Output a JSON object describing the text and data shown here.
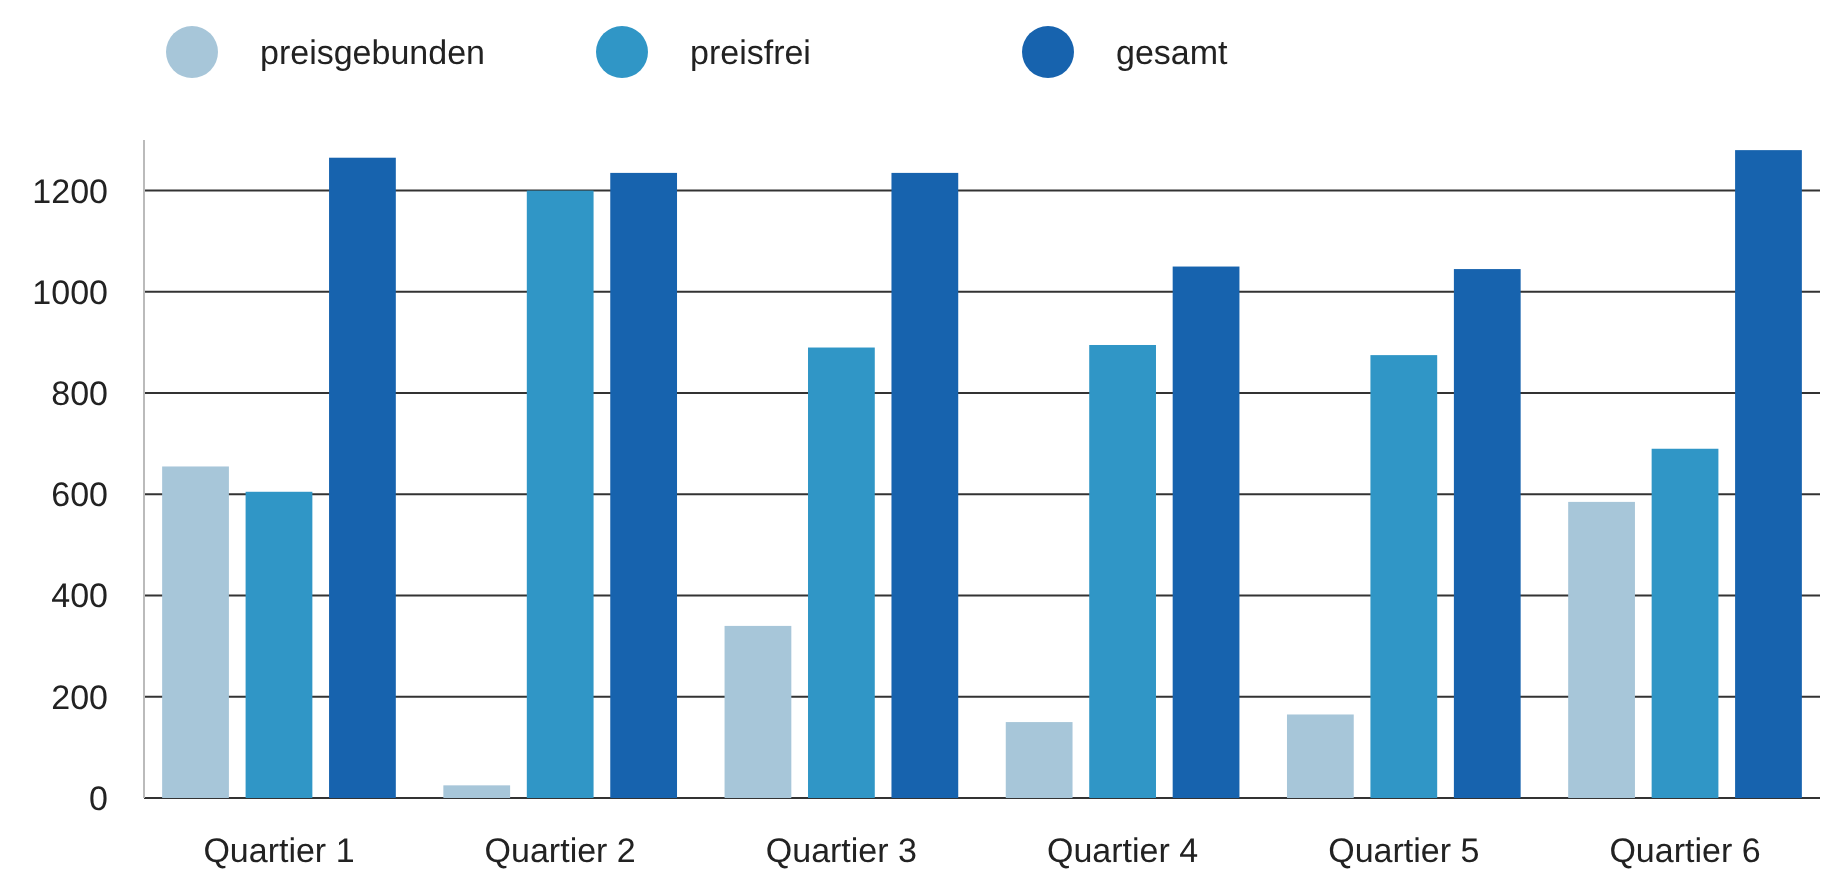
{
  "chart_data": {
    "type": "bar",
    "categories": [
      "Quartier 1",
      "Quartier 2",
      "Quartier 3",
      "Quartier 4",
      "Quartier 5",
      "Quartier 6"
    ],
    "series": [
      {
        "name": "preisgebunden",
        "color": "#a7c6d9",
        "values": [
          655,
          25,
          340,
          150,
          165,
          585
        ]
      },
      {
        "name": "preisfrei",
        "color": "#3096c6",
        "values": [
          605,
          1200,
          890,
          895,
          875,
          690
        ]
      },
      {
        "name": "gesamt",
        "color": "#1763ae",
        "values": [
          1265,
          1235,
          1235,
          1050,
          1045,
          1280
        ]
      }
    ],
    "ylim": [
      0,
      1300
    ],
    "yticks": [
      0,
      200,
      400,
      600,
      800,
      1000,
      1200
    ],
    "grid": "y",
    "legend": "top"
  }
}
